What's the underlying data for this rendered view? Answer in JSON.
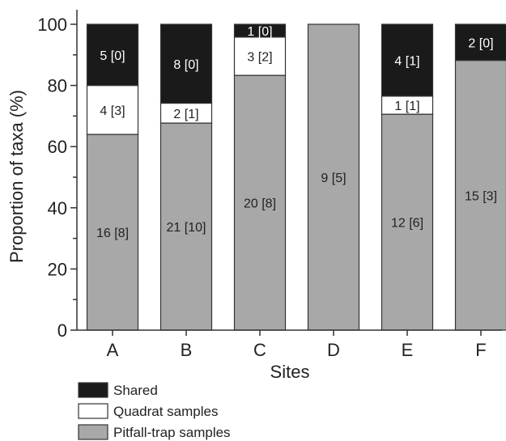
{
  "chart_data": {
    "type": "bar",
    "stacked": true,
    "xlabel": "Sites",
    "ylabel": "Proportion of taxa (%)",
    "ylim": [
      0,
      100
    ],
    "yticks": [
      "0",
      "20",
      "40",
      "60",
      "80",
      "100"
    ],
    "categories": [
      "A",
      "B",
      "C",
      "D",
      "E",
      "F"
    ],
    "series": [
      {
        "name": "Pitfall-trap samples",
        "color": "#a8a8a8",
        "text_color": "#222222",
        "values": [
          64.0,
          67.7,
          83.3,
          100,
          70.6,
          88.2
        ],
        "labels": [
          "16 [8]",
          "21 [10]",
          "20 [8]",
          "9 [5]",
          "12 [6]",
          "15 [3]"
        ]
      },
      {
        "name": "Quadrat samples",
        "color": "#ffffff",
        "text_color": "#222222",
        "values": [
          16.0,
          6.5,
          12.5,
          0,
          5.9,
          0
        ],
        "labels": [
          "4 [3]",
          "2 [1]",
          "3 [2]",
          "",
          "1 [1]",
          ""
        ]
      },
      {
        "name": "Shared",
        "color": "#1a1a1a",
        "text_color": "#ffffff",
        "values": [
          20.0,
          25.8,
          4.2,
          0,
          23.5,
          11.8
        ],
        "labels": [
          "5 [0]",
          "8 [0]",
          "1 [0]",
          "",
          "4 [1]",
          "2 [0]"
        ]
      }
    ],
    "legend": [
      {
        "label": "Shared",
        "color": "#1a1a1a"
      },
      {
        "label": "Quadrat samples",
        "color": "#ffffff"
      },
      {
        "label": "Pitfall-trap samples",
        "color": "#a8a8a8"
      }
    ]
  }
}
